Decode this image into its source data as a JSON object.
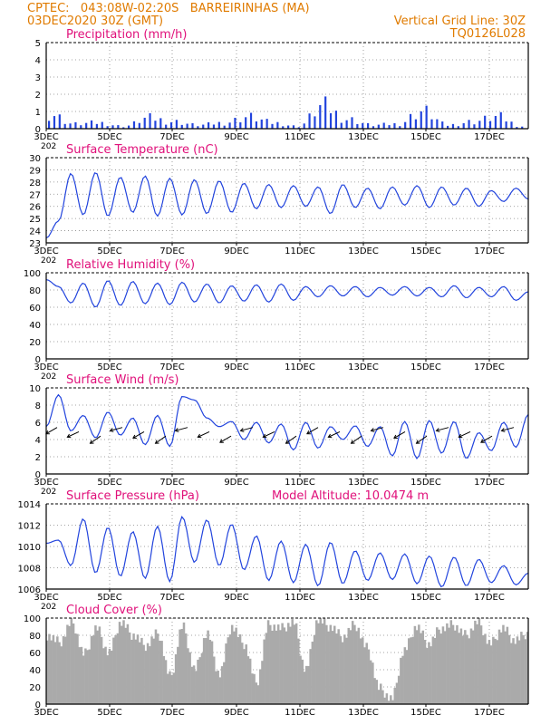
{
  "header": {
    "line1_left": "CPTEC:   043:08W-02:20S   BARREIRINHAS (MA)",
    "line2_left": "03DEC2020 30Z (GMT)",
    "line1_right": "Vertical Grid Line: 30Z",
    "line2_right": "TQ0126L028"
  },
  "colors": {
    "header": "#e07b00",
    "panel_title": "#e0107a",
    "series": "#2244dd",
    "cloud": "#aaaaaa",
    "grid": "#888888"
  },
  "x_axis": {
    "labels": [
      "3DEC",
      "5DEC",
      "7DEC",
      "9DEC",
      "11DEC",
      "13DEC",
      "15DEC",
      "17DEC"
    ],
    "under_label": "202"
  },
  "chart_data": [
    {
      "id": "precip",
      "type": "bar",
      "title": "Precipitation (mm/h)",
      "ylim": [
        0,
        5
      ],
      "yticks": [
        0,
        1,
        2,
        3,
        4,
        5
      ],
      "series": [
        {
          "values": [
            1.3,
            0.4,
            0.5,
            0.2,
            0.9,
            0.6,
            0.3,
            0.5,
            1.0,
            0.5,
            0.2,
            1.9,
            0.8,
            0.3,
            0.4,
            1.5,
            0.3,
            0.6,
            1.0,
            0.2
          ]
        }
      ]
    },
    {
      "id": "temp",
      "type": "line",
      "title": "Surface Temperature (nC)",
      "ylim": [
        23,
        30
      ],
      "yticks": [
        23,
        24,
        25,
        26,
        27,
        28,
        29,
        30
      ],
      "series": [
        {
          "values": [
            23.4,
            24.8,
            28.7,
            25.3,
            28.8,
            25.2,
            28.4,
            25.5,
            28.5,
            25.2,
            28.3,
            25.3,
            28.2,
            25.4,
            28.1,
            25.5,
            27.9,
            25.8,
            27.8,
            25.9,
            27.7,
            26.0,
            27.6,
            25.4,
            27.8,
            25.9,
            27.5,
            25.8,
            27.6,
            26.1,
            27.7,
            25.9,
            27.6,
            26.1,
            27.5,
            26.0,
            27.3,
            26.4,
            27.5,
            26.6
          ]
        }
      ]
    },
    {
      "id": "rh",
      "type": "line",
      "title": "Relative Humidity (%)",
      "ylim": [
        0,
        100
      ],
      "yticks": [
        0,
        20,
        40,
        60,
        80,
        100
      ],
      "series": [
        {
          "values": [
            92,
            84,
            65,
            88,
            60,
            91,
            62,
            90,
            64,
            88,
            63,
            89,
            66,
            87,
            65,
            85,
            67,
            86,
            66,
            87,
            68,
            84,
            72,
            85,
            73,
            84,
            72,
            83,
            74,
            84,
            73,
            83,
            72,
            85,
            71,
            83,
            72,
            84,
            68,
            78
          ]
        }
      ]
    },
    {
      "id": "wind",
      "type": "line",
      "title": "Surface Wind (m/s)",
      "ylim": [
        0,
        10
      ],
      "yticks": [
        0,
        2,
        4,
        6,
        8,
        10
      ],
      "series": [
        {
          "values": [
            5.5,
            9.2,
            5.0,
            6.8,
            4.2,
            7.2,
            4.5,
            6.5,
            3.4,
            6.8,
            3.2,
            9.0,
            8.6,
            6.5,
            5.5,
            6.1,
            4.0,
            6.0,
            3.6,
            5.8,
            2.8,
            6.0,
            3.0,
            5.5,
            4.0,
            5.6,
            3.2,
            5.5,
            2.1,
            6.1,
            1.8,
            6.2,
            2.4,
            6.1,
            1.8,
            4.8,
            2.7,
            6.0,
            3.1,
            6.9
          ]
        }
      ]
    },
    {
      "id": "pressure",
      "type": "line",
      "title": "Surface Pressure (hPa)",
      "annotation": "Model Altitude: 10.0474 m",
      "ylim": [
        1006,
        1014
      ],
      "yticks": [
        1006,
        1008,
        1010,
        1012,
        1014
      ],
      "series": [
        {
          "values": [
            1010.3,
            1010.6,
            1008.2,
            1012.6,
            1007.5,
            1011.8,
            1007.2,
            1011.4,
            1007.0,
            1011.9,
            1006.7,
            1012.8,
            1008.5,
            1012.5,
            1008.2,
            1012.1,
            1007.8,
            1011.0,
            1006.8,
            1010.5,
            1006.6,
            1010.2,
            1006.3,
            1010.4,
            1006.5,
            1009.6,
            1006.8,
            1009.4,
            1006.9,
            1009.3,
            1006.5,
            1009.1,
            1006.2,
            1009.0,
            1006.3,
            1008.8,
            1006.6,
            1008.2,
            1006.4,
            1007.5
          ]
        }
      ]
    },
    {
      "id": "cloud",
      "type": "area",
      "title": "Cloud Cover (%)",
      "ylim": [
        0,
        100
      ],
      "yticks": [
        0,
        20,
        40,
        60,
        80,
        100
      ],
      "series": [
        {
          "values": [
            80,
            72,
            95,
            58,
            88,
            60,
            95,
            80,
            68,
            82,
            32,
            90,
            40,
            82,
            35,
            90,
            70,
            25,
            92,
            88,
            95,
            40,
            98,
            90,
            78,
            92,
            65,
            18,
            6,
            62,
            90,
            70,
            88,
            92,
            80,
            95,
            70,
            88,
            74,
            82
          ]
        }
      ]
    }
  ]
}
